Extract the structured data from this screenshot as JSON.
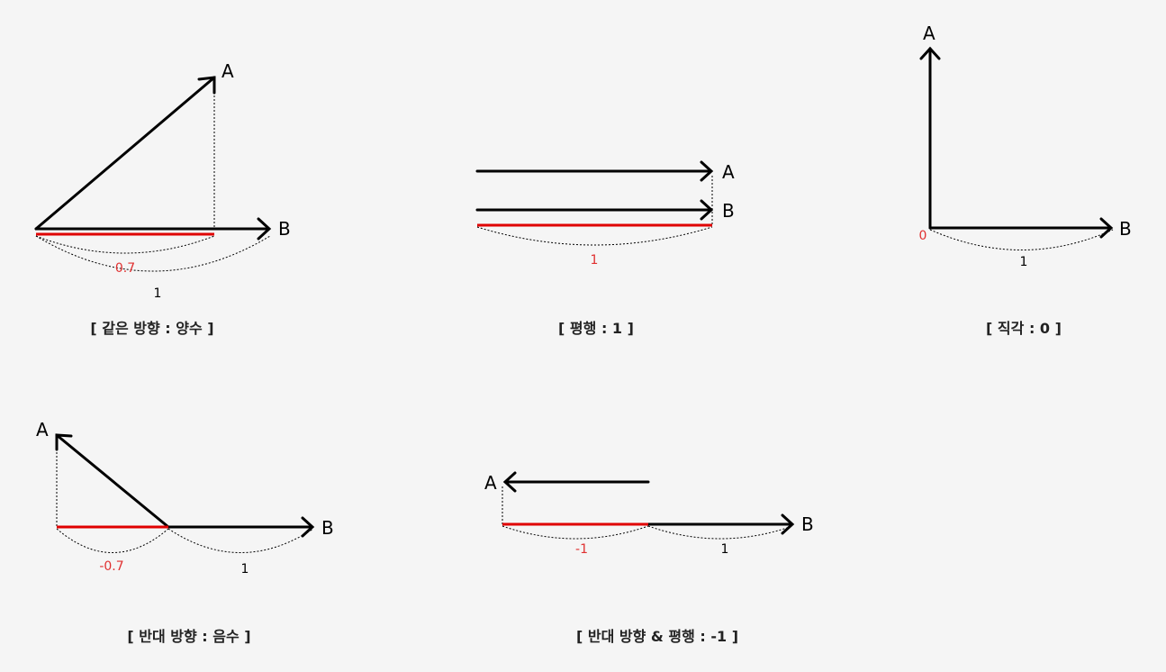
{
  "colors": {
    "background": "#f5f5f5",
    "vector": "#000000",
    "projection": "#e00000",
    "projection_label": "#e03030"
  },
  "panels": {
    "same_direction": {
      "vector_a_label": "A",
      "vector_b_label": "B",
      "projection_value": "0.7",
      "length_value": "1",
      "caption": "[ 같은 방향 : 양수 ]"
    },
    "parallel": {
      "vector_a_label": "A",
      "vector_b_label": "B",
      "projection_value": "1",
      "caption": "[ 평행 : 1 ]"
    },
    "perpendicular": {
      "vector_a_label": "A",
      "vector_b_label": "B",
      "projection_value": "0",
      "length_value": "1",
      "caption": "[ 직각 : 0 ]"
    },
    "opposite_direction": {
      "vector_a_label": "A",
      "vector_b_label": "B",
      "projection_value": "-0.7",
      "length_value": "1",
      "caption": "[ 반대 방향 : 음수 ]"
    },
    "opposite_parallel": {
      "vector_a_label": "A",
      "vector_b_label": "B",
      "projection_value": "-1",
      "length_value": "1",
      "caption": "[ 반대 방향 & 평행 : -1 ]"
    }
  }
}
